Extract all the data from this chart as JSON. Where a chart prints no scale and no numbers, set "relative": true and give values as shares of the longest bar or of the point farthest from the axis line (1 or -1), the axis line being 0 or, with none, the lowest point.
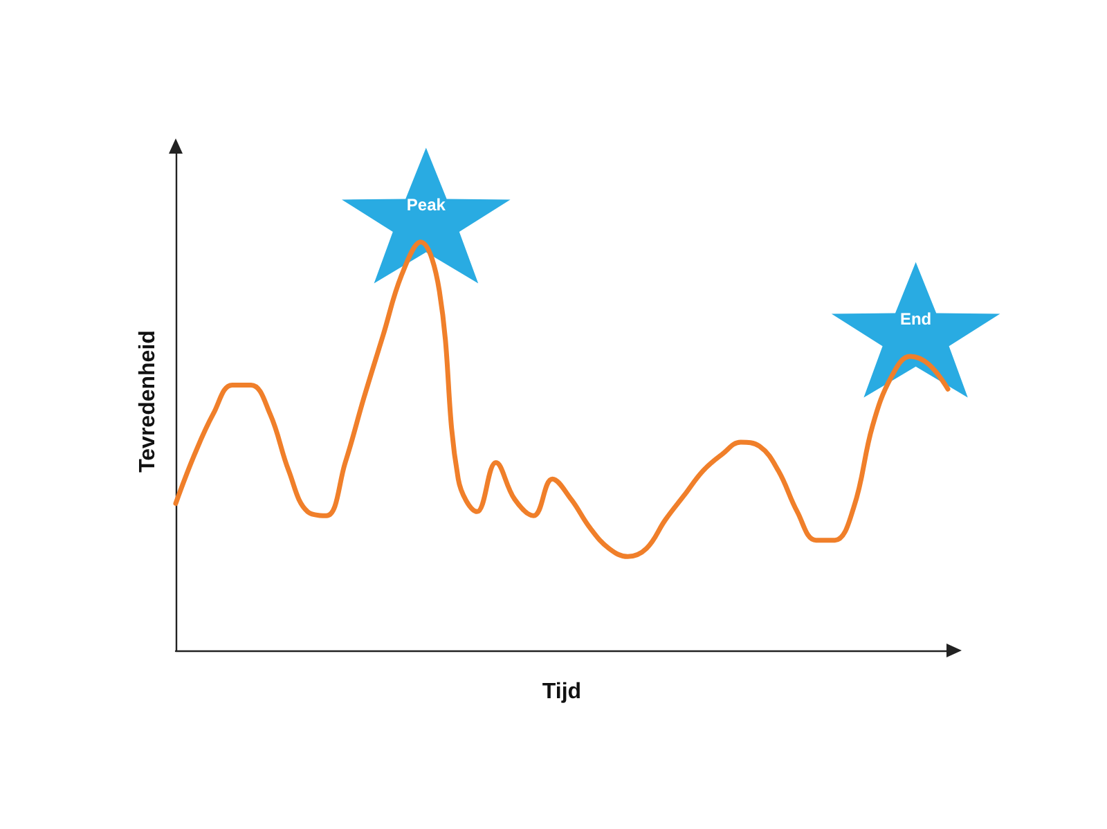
{
  "chart_data": {
    "type": "line",
    "relative": true,
    "xlabel": "Tijd",
    "ylabel": "Tevredenheid",
    "categories": [
      null,
      null,
      null,
      null,
      null,
      null,
      null,
      null,
      null,
      null,
      null,
      null,
      null,
      null,
      null,
      null,
      null,
      null,
      null,
      null,
      null,
      null,
      null,
      null,
      null,
      null,
      null,
      null,
      null,
      null,
      null,
      null,
      null,
      null,
      null,
      null,
      null,
      null,
      null,
      null,
      null,
      null
    ],
    "series": [
      {
        "color": "#f07f2a",
        "values": [
          0.36,
          0.48,
          0.58,
          0.65,
          0.65,
          0.58,
          0.44,
          0.34,
          0.33,
          0.46,
          0.62,
          0.77,
          0.92,
          1.0,
          0.88,
          0.42,
          0.34,
          0.46,
          0.37,
          0.33,
          0.42,
          0.37,
          0.3,
          0.25,
          0.23,
          0.25,
          0.32,
          0.38,
          0.44,
          0.48,
          0.51,
          0.5,
          0.44,
          0.34,
          0.27,
          0.27,
          0.35,
          0.55,
          0.67,
          0.72,
          0.7,
          0.64
        ]
      }
    ],
    "annotations": [
      {
        "text": "Peak",
        "y": 1.0
      },
      {
        "text": "End",
        "y": 0.72
      }
    ],
    "marker": "none",
    "grid": false
  }
}
